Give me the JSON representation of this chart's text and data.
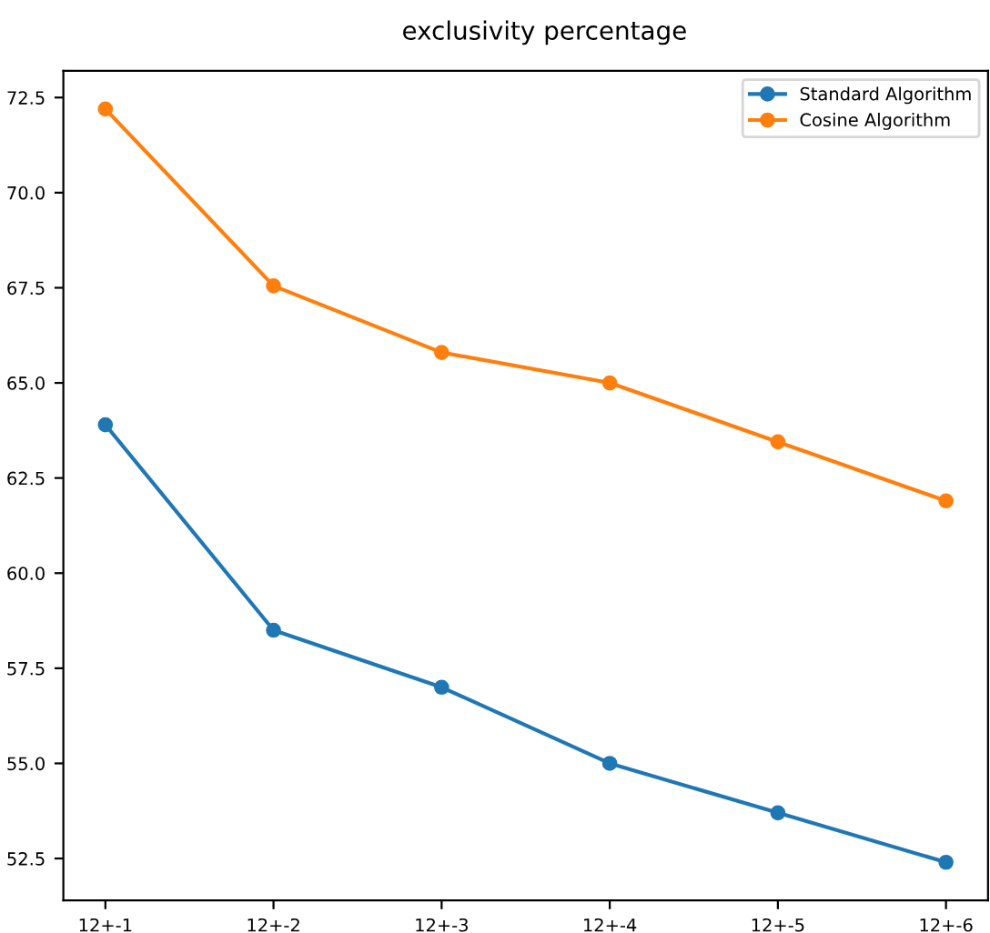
{
  "chart_data": {
    "type": "line",
    "title": "exclusivity percentage",
    "categories": [
      "12+-1",
      "12+-2",
      "12+-3",
      "12+-4",
      "12+-5",
      "12+-6"
    ],
    "series": [
      {
        "name": "Standard Algorithm",
        "color": "#1f77b4",
        "values": [
          63.9,
          58.5,
          57.0,
          55.0,
          53.7,
          52.4
        ]
      },
      {
        "name": "Cosine Algorithm",
        "color": "#ff7f0e",
        "values": [
          72.2,
          67.55,
          65.8,
          65.0,
          63.45,
          61.9
        ]
      }
    ],
    "ylim": [
      51.4,
      73.2
    ],
    "yticks": [
      52.5,
      {
        "value": 55,
        "label": "55.0"
      },
      57.5,
      {
        "value": 60,
        "label": "60.0"
      },
      62.5,
      {
        "value": 65,
        "label": "65.0"
      },
      67.5,
      {
        "value": 70,
        "label": "70.0"
      },
      72.5
    ],
    "legend": "top right",
    "marker": "circle",
    "line_style": "solid",
    "grid": false
  }
}
